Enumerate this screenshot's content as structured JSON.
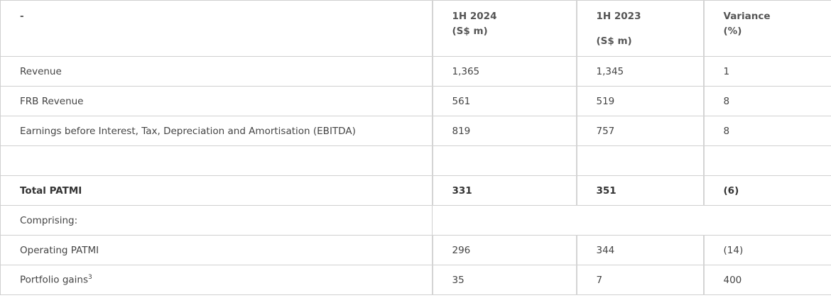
{
  "header": {
    "columns": [
      {
        "lines": [
          "-"
        ]
      },
      {
        "lines": [
          "1H 2024",
          "(S$ m)"
        ]
      },
      {
        "lines": [
          "1H 2023",
          "(S$ m)"
        ]
      },
      {
        "lines": [
          "Variance",
          "(%)"
        ]
      }
    ]
  },
  "rows": [
    {
      "cells": [
        "Revenue",
        "1,365",
        "1,345",
        "1"
      ]
    },
    {
      "cells": [
        "FRB Revenue",
        "561",
        "519",
        "8"
      ]
    },
    {
      "cells": [
        "Earnings before Interest, Tax, Depreciation and Amortisation (EBITDA)",
        "819",
        "757",
        "8"
      ]
    },
    {
      "cells": [
        "Total PATMI",
        "331",
        "351",
        "(6)"
      ]
    },
    {
      "cells": [
        "Comprising:"
      ]
    },
    {
      "cells": [
        "Operating PATMI",
        "296",
        "344",
        "(14)"
      ]
    },
    {
      "cells": [
        "Portfolio gains",
        "35",
        "7",
        "400"
      ],
      "footnote": "3"
    }
  ]
}
